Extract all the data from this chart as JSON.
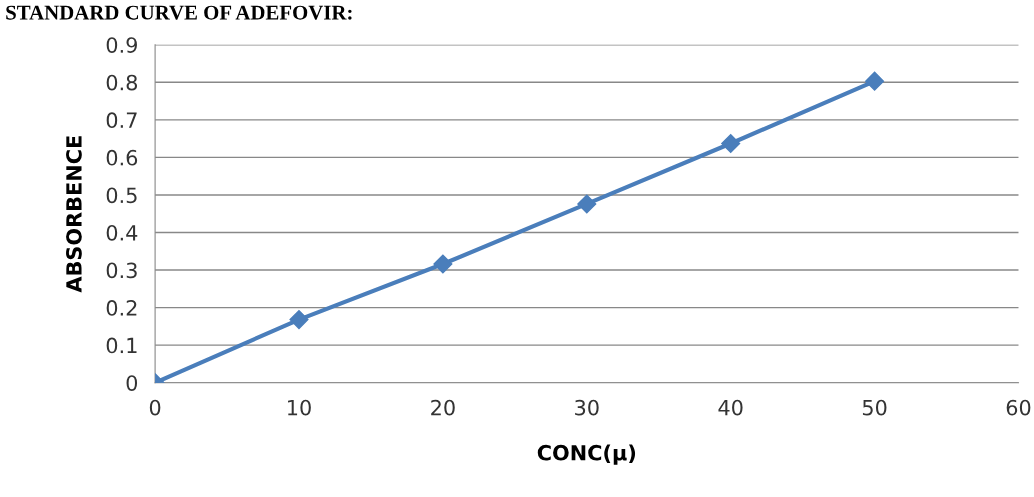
{
  "chart_data": {
    "type": "line",
    "title": "STANDARD CURVE OF ADEFOVIR:",
    "xlabel": "CONC(µ)",
    "ylabel": "ABSORBENCE",
    "x": [
      0,
      10,
      20,
      30,
      40,
      50
    ],
    "series": [
      {
        "color": "#4a7ebb",
        "values": [
          0,
          0.168,
          0.316,
          0.476,
          0.637,
          0.803
        ]
      }
    ],
    "xlim": [
      0,
      60
    ],
    "xticks": [
      0,
      10,
      20,
      30,
      40,
      50,
      60
    ],
    "ylim": [
      0,
      0.9
    ],
    "yticks": [
      0,
      0.1,
      0.2,
      0.3,
      0.4,
      0.5,
      0.6,
      0.7,
      0.8,
      0.9
    ],
    "grid": "y",
    "marker": "diamond",
    "line_style": "solid",
    "legend": false
  }
}
